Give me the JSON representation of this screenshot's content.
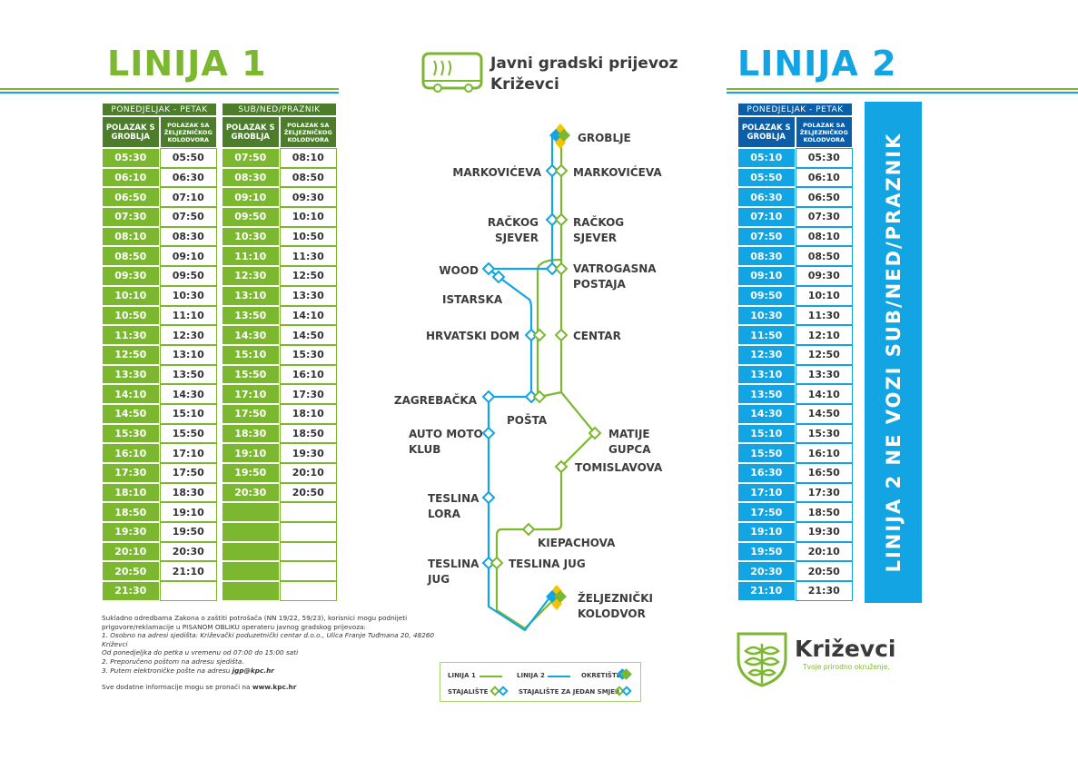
{
  "header": {
    "line1_title": "LINIJA 1",
    "line2_title": "LINIJA 2",
    "brand_title": "Javni gradski prijevoz",
    "brand_city": "Križevci"
  },
  "colors": {
    "green": "#7cb82f",
    "dark_green": "#4b7d2a",
    "blue": "#12a4e3",
    "dark_blue": "#0b5ea8",
    "yellow": "#f5c400"
  },
  "line1": {
    "weekday": {
      "day": "PONEDJELJAK - PETAK",
      "col_a": "POLAZAK S GROBLJA",
      "col_b": "POLAZAK SA ŽELJEZNIČKOG KOLODVORA",
      "rows": [
        [
          "05:30",
          "05:50"
        ],
        [
          "06:10",
          "06:30"
        ],
        [
          "06:50",
          "07:10"
        ],
        [
          "07:30",
          "07:50"
        ],
        [
          "08:10",
          "08:30"
        ],
        [
          "08:50",
          "09:10"
        ],
        [
          "09:30",
          "09:50"
        ],
        [
          "10:10",
          "10:30"
        ],
        [
          "10:50",
          "11:10"
        ],
        [
          "11:30",
          "12:30"
        ],
        [
          "12:50",
          "13:10"
        ],
        [
          "13:30",
          "13:50"
        ],
        [
          "14:10",
          "14:30"
        ],
        [
          "14:50",
          "15:10"
        ],
        [
          "15:30",
          "15:50"
        ],
        [
          "16:10",
          "17:10"
        ],
        [
          "17:30",
          "17:50"
        ],
        [
          "18:10",
          "18:30"
        ],
        [
          "18:50",
          "19:10"
        ],
        [
          "19:30",
          "19:50"
        ],
        [
          "20:10",
          "20:30"
        ],
        [
          "20:50",
          "21:10"
        ],
        [
          "21:30",
          ""
        ]
      ]
    },
    "weekend": {
      "day": "SUB/NED/PRAZNIK",
      "col_a": "POLAZAK S GROBLJA",
      "col_b": "POLAZAK SA ŽELJEZNIČKOG KOLODVORA",
      "rows": [
        [
          "07:50",
          "08:10"
        ],
        [
          "08:30",
          "08:50"
        ],
        [
          "09:10",
          "09:30"
        ],
        [
          "09:50",
          "10:10"
        ],
        [
          "10:30",
          "10:50"
        ],
        [
          "11:10",
          "11:30"
        ],
        [
          "12:30",
          "12:50"
        ],
        [
          "13:10",
          "13:30"
        ],
        [
          "13:50",
          "14:10"
        ],
        [
          "14:30",
          "14:50"
        ],
        [
          "15:10",
          "15:30"
        ],
        [
          "15:50",
          "16:10"
        ],
        [
          "17:10",
          "17:30"
        ],
        [
          "17:50",
          "18:10"
        ],
        [
          "18:30",
          "18:50"
        ],
        [
          "19:10",
          "19:30"
        ],
        [
          "19:50",
          "20:10"
        ],
        [
          "20:30",
          "20:50"
        ],
        [
          "",
          ""
        ],
        [
          "",
          ""
        ],
        [
          "",
          ""
        ],
        [
          "",
          ""
        ],
        [
          "",
          ""
        ]
      ]
    }
  },
  "line2": {
    "weekday": {
      "day": "PONEDJELJAK - PETAK",
      "col_a": "POLAZAK S GROBLJA",
      "col_b": "POLAZAK SA ŽELJEZNIČKOG KOLODVORA",
      "rows": [
        [
          "05:10",
          "05:30"
        ],
        [
          "05:50",
          "06:10"
        ],
        [
          "06:30",
          "06:50"
        ],
        [
          "07:10",
          "07:30"
        ],
        [
          "07:50",
          "08:10"
        ],
        [
          "08:30",
          "08:50"
        ],
        [
          "09:10",
          "09:30"
        ],
        [
          "09:50",
          "10:10"
        ],
        [
          "10:30",
          "11:30"
        ],
        [
          "11:50",
          "12:10"
        ],
        [
          "12:30",
          "12:50"
        ],
        [
          "13:10",
          "13:30"
        ],
        [
          "13:50",
          "14:10"
        ],
        [
          "14:30",
          "14:50"
        ],
        [
          "15:10",
          "15:30"
        ],
        [
          "15:50",
          "16:10"
        ],
        [
          "16:30",
          "16:50"
        ],
        [
          "17:10",
          "17:30"
        ],
        [
          "17:50",
          "18:50"
        ],
        [
          "19:10",
          "19:30"
        ],
        [
          "19:50",
          "20:10"
        ],
        [
          "20:30",
          "20:50"
        ],
        [
          "21:10",
          "21:30"
        ]
      ]
    },
    "weekend_notice": "LINIJA 2 NE VOZI SUB/NED/PRAZNIK"
  },
  "map": {
    "stops": {
      "groblje": "GROBLJE",
      "markoviceva": "MARKOVIĆEVA",
      "rackog1": "RAČKOG",
      "rackog2": "SJEVER",
      "wood": "WOOD",
      "vatro1": "VATROGASNA",
      "vatro2": "POSTAJA",
      "istarska": "ISTARSKA",
      "hrvatski_dom": "HRVATSKI DOM",
      "centar": "CENTAR",
      "zagrebacka": "ZAGREBAČKA",
      "posta": "POŠTA",
      "amk1": "AUTO MOTO",
      "amk2": "KLUB",
      "matije1": "MATIJE",
      "matije2": "GUPCA",
      "tomislavova": "TOMISLAVOVA",
      "lora1": "TESLINA",
      "lora2": "LORA",
      "kiepachova": "KIEPACHOVA",
      "tjug1": "TESLINA",
      "tjug2": "JUG",
      "teslina_jug": "TESLINA JUG",
      "zk1": "ŽELJEZNIČKI",
      "zk2": "KOLODVOR"
    }
  },
  "legend": {
    "line1": "LINIJA 1",
    "line2": "LINIJA 2",
    "terminus": "OKRETIŠTE",
    "stop": "STAJALIŠTE",
    "one_way_stop": "STAJALIŠTE ZA JEDAN SMJER"
  },
  "notice": {
    "p1": "Sukladno odredbama Zakona o zaštiti potrošača (NN 19/22, 59/23), korisnici mogu podnijeti prigovore/reklamacije u PISANOM OBLIKU operateru javnog gradskog prijevoza:",
    "i1": "1. Osobno na adresi sjedišta: Križevački poduzetnički centar d.o.o., Ulica Franje Tuđmana 20, 48260 Križevci",
    "i2": "Od ponedjeljka do petka u vremenu od 07:00 do 15:00 sati",
    "i3": "2. Preporučeno poštom na adresu sjedišta.",
    "i4": "3. Putem elektroničke pošte na adresu ",
    "email": "jgp@kpc.hr",
    "p2": "Sve dodatne informacije mogu se pronaći na ",
    "web": "www.kpc.hr"
  },
  "city_logo": {
    "name": "Križevci",
    "slogan": "Tvoje prirodno okruženje."
  }
}
